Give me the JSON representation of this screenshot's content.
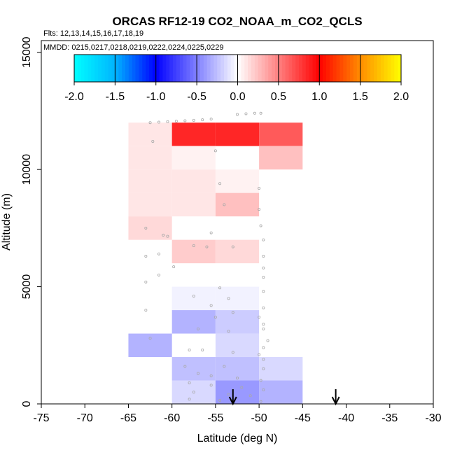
{
  "chart_data": {
    "type": "heatmap",
    "title": "ORCAS RF12-19 CO2_NOAA_m_CO2_QCLS",
    "flights_label": "Flts: 12,13,14,15,16,17,18,19",
    "dates_label": "MMDD: 0215,0217,0218,0219,0222,0224,0225,0229",
    "xlabel": "Latitude (deg N)",
    "ylabel": "Altitude (m)",
    "xlim": [
      -75,
      -30
    ],
    "ylim": [
      0,
      15500
    ],
    "x_ticks": [
      -75,
      -70,
      -65,
      -60,
      -55,
      -50,
      -45,
      -40,
      -35,
      -30
    ],
    "x_tick_labels": [
      "-75",
      "-70",
      "-65",
      "-60",
      "-55",
      "-50",
      "-45",
      "-40",
      "-35",
      "-30"
    ],
    "y_ticks": [
      0,
      5000,
      10000,
      15000
    ],
    "y_tick_labels": [
      "0",
      "5000",
      "10000",
      "15000"
    ],
    "colorbar": {
      "range": [
        -2.0,
        2.0
      ],
      "ticks": [
        -2.0,
        -1.5,
        -1.0,
        -0.5,
        0.0,
        0.5,
        1.0,
        1.5,
        2.0
      ],
      "tick_labels": [
        "-2.0",
        "-1.5",
        "-1.0",
        "-0.5",
        "0.0",
        "0.5",
        "1.0",
        "1.5",
        "2.0"
      ]
    },
    "cells": [
      {
        "lat": [
          -65,
          -60
        ],
        "alt": [
          11000,
          12000
        ],
        "value": 0.1
      },
      {
        "lat": [
          -65,
          -60
        ],
        "alt": [
          10000,
          11000
        ],
        "value": 0.1
      },
      {
        "lat": [
          -65,
          -60
        ],
        "alt": [
          9000,
          10000
        ],
        "value": 0.1
      },
      {
        "lat": [
          -65,
          -60
        ],
        "alt": [
          8000,
          9000
        ],
        "value": 0.1
      },
      {
        "lat": [
          -65,
          -60
        ],
        "alt": [
          7000,
          8000
        ],
        "value": 0.15
      },
      {
        "lat": [
          -65,
          -60
        ],
        "alt": [
          2000,
          3000
        ],
        "value": -0.3
      },
      {
        "lat": [
          -60,
          -55
        ],
        "alt": [
          11000,
          12000
        ],
        "value": 0.85
      },
      {
        "lat": [
          -55,
          -50
        ],
        "alt": [
          11000,
          12000
        ],
        "value": 0.85
      },
      {
        "lat": [
          -50,
          -45
        ],
        "alt": [
          11000,
          12000
        ],
        "value": 0.65
      },
      {
        "lat": [
          -60,
          -55
        ],
        "alt": [
          10000,
          11000
        ],
        "value": 0.05
      },
      {
        "lat": [
          -50,
          -45
        ],
        "alt": [
          10000,
          11000
        ],
        "value": 0.25
      },
      {
        "lat": [
          -60,
          -55
        ],
        "alt": [
          9000,
          10000
        ],
        "value": 0.1
      },
      {
        "lat": [
          -55,
          -50
        ],
        "alt": [
          9000,
          10000
        ],
        "value": 0.05
      },
      {
        "lat": [
          -60,
          -55
        ],
        "alt": [
          8000,
          9000
        ],
        "value": 0.1
      },
      {
        "lat": [
          -55,
          -50
        ],
        "alt": [
          8000,
          9000
        ],
        "value": 0.25
      },
      {
        "lat": [
          -60,
          -55
        ],
        "alt": [
          6000,
          7000
        ],
        "value": 0.2
      },
      {
        "lat": [
          -55,
          -50
        ],
        "alt": [
          6000,
          7000
        ],
        "value": 0.15
      },
      {
        "lat": [
          -60,
          -55
        ],
        "alt": [
          4000,
          5000
        ],
        "value": -0.05
      },
      {
        "lat": [
          -55,
          -50
        ],
        "alt": [
          4000,
          5000
        ],
        "value": -0.05
      },
      {
        "lat": [
          -60,
          -55
        ],
        "alt": [
          3000,
          4000
        ],
        "value": -0.3
      },
      {
        "lat": [
          -55,
          -50
        ],
        "alt": [
          3000,
          4000
        ],
        "value": -0.2
      },
      {
        "lat": [
          -55,
          -50
        ],
        "alt": [
          2000,
          3000
        ],
        "value": -0.15
      },
      {
        "lat": [
          -60,
          -55
        ],
        "alt": [
          1000,
          2000
        ],
        "value": -0.25
      },
      {
        "lat": [
          -55,
          -50
        ],
        "alt": [
          1000,
          2000
        ],
        "value": -0.25
      },
      {
        "lat": [
          -50,
          -45
        ],
        "alt": [
          1000,
          2000
        ],
        "value": -0.15
      },
      {
        "lat": [
          -60,
          -55
        ],
        "alt": [
          0,
          1000
        ],
        "value": -0.15
      },
      {
        "lat": [
          -55,
          -50
        ],
        "alt": [
          0,
          1000
        ],
        "value": -0.4
      },
      {
        "lat": [
          -50,
          -45
        ],
        "alt": [
          0,
          1000
        ],
        "value": -0.3
      }
    ],
    "arrows": [
      {
        "lat": -53,
        "label": "arrow"
      },
      {
        "lat": -41.2,
        "label": "arrow"
      }
    ],
    "samples": [
      {
        "lat": -62.5,
        "alt": 12000
      },
      {
        "lat": -61.5,
        "alt": 12020
      },
      {
        "lat": -60.5,
        "alt": 12040
      },
      {
        "lat": -59.5,
        "alt": 12060
      },
      {
        "lat": -58.5,
        "alt": 12080
      },
      {
        "lat": -57.5,
        "alt": 12100
      },
      {
        "lat": -56.5,
        "alt": 12120
      },
      {
        "lat": -55.5,
        "alt": 12150
      },
      {
        "lat": -52.5,
        "alt": 12350
      },
      {
        "lat": -51.5,
        "alt": 12380
      },
      {
        "lat": -50.5,
        "alt": 12400
      },
      {
        "lat": -49.8,
        "alt": 12400
      },
      {
        "lat": -62.2,
        "alt": 11200
      },
      {
        "lat": -55.0,
        "alt": 10800
      },
      {
        "lat": -54.5,
        "alt": 9400
      },
      {
        "lat": -50.0,
        "alt": 9200
      },
      {
        "lat": -54.0,
        "alt": 8500
      },
      {
        "lat": -50.0,
        "alt": 8300
      },
      {
        "lat": -63.0,
        "alt": 7500
      },
      {
        "lat": -60.5,
        "alt": 7150
      },
      {
        "lat": -61.0,
        "alt": 7200
      },
      {
        "lat": -55.5,
        "alt": 7300
      },
      {
        "lat": -49.8,
        "alt": 7600
      },
      {
        "lat": -49.5,
        "alt": 7000
      },
      {
        "lat": -57.5,
        "alt": 6750
      },
      {
        "lat": -56.0,
        "alt": 6700
      },
      {
        "lat": -53.0,
        "alt": 6700
      },
      {
        "lat": -49.5,
        "alt": 6300
      },
      {
        "lat": -63.0,
        "alt": 6300
      },
      {
        "lat": -61.5,
        "alt": 6400
      },
      {
        "lat": -59.8,
        "alt": 5850
      },
      {
        "lat": -49.5,
        "alt": 5800
      },
      {
        "lat": -61.5,
        "alt": 5500
      },
      {
        "lat": -49.5,
        "alt": 5400
      },
      {
        "lat": -63.0,
        "alt": 5200
      },
      {
        "lat": -54.5,
        "alt": 4950
      },
      {
        "lat": -57.5,
        "alt": 4600
      },
      {
        "lat": -53.5,
        "alt": 4500
      },
      {
        "lat": -49.5,
        "alt": 4800
      },
      {
        "lat": -55.5,
        "alt": 4200
      },
      {
        "lat": -49.5,
        "alt": 4100
      },
      {
        "lat": -63.0,
        "alt": 4000
      },
      {
        "lat": -53.0,
        "alt": 3900
      },
      {
        "lat": -55.0,
        "alt": 3700
      },
      {
        "lat": -50.0,
        "alt": 3700
      },
      {
        "lat": -49.5,
        "alt": 3400
      },
      {
        "lat": -57.0,
        "alt": 3200
      },
      {
        "lat": -53.5,
        "alt": 3100
      },
      {
        "lat": -49.5,
        "alt": 3200
      },
      {
        "lat": -62.5,
        "alt": 2800
      },
      {
        "lat": -49.0,
        "alt": 2700
      },
      {
        "lat": -49.5,
        "alt": 2400
      },
      {
        "lat": -58.0,
        "alt": 2300
      },
      {
        "lat": -56.5,
        "alt": 2300
      },
      {
        "lat": -53.0,
        "alt": 2200
      },
      {
        "lat": -50.0,
        "alt": 2100
      },
      {
        "lat": -49.5,
        "alt": 1900
      },
      {
        "lat": -58.5,
        "alt": 1600
      },
      {
        "lat": -54.0,
        "alt": 1600
      },
      {
        "lat": -49.5,
        "alt": 1500
      },
      {
        "lat": -57.0,
        "alt": 1300
      },
      {
        "lat": -55.5,
        "alt": 1200
      },
      {
        "lat": -52.5,
        "alt": 1100
      },
      {
        "lat": -49.8,
        "alt": 1000
      },
      {
        "lat": -58.0,
        "alt": 900
      },
      {
        "lat": -55.5,
        "alt": 800
      },
      {
        "lat": -52.0,
        "alt": 700
      },
      {
        "lat": -49.5,
        "alt": 600
      },
      {
        "lat": -57.5,
        "alt": 500
      },
      {
        "lat": -53.5,
        "alt": 400
      },
      {
        "lat": -51.0,
        "alt": 350
      },
      {
        "lat": -58.0,
        "alt": 200
      },
      {
        "lat": -54.5,
        "alt": 150
      },
      {
        "lat": -49.8,
        "alt": 100
      }
    ]
  }
}
